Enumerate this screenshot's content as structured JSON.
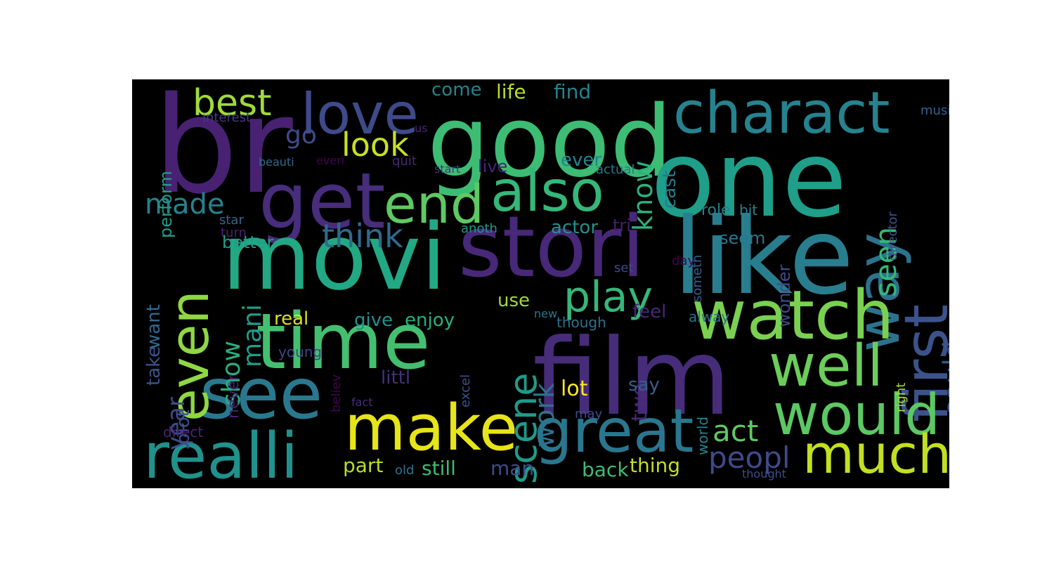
{
  "words": [
    {
      "text": "br",
      "color": "#482173"
    },
    {
      "text": "good",
      "color": "#3dbc74"
    },
    {
      "text": "one",
      "color": "#1f9e89"
    },
    {
      "text": "love",
      "color": "#3e4a89"
    },
    {
      "text": "best",
      "color": "#a0da39"
    },
    {
      "text": "charact",
      "color": "#26828e"
    },
    {
      "text": "get",
      "color": "#472d7b"
    },
    {
      "text": "end",
      "color": "#5ec962"
    },
    {
      "text": "also",
      "color": "#35b779"
    },
    {
      "text": "way",
      "color": "#2c728e"
    },
    {
      "text": "first",
      "color": "#3b528b"
    },
    {
      "text": "movi",
      "color": "#22a884"
    },
    {
      "text": "stori",
      "color": "#482878"
    },
    {
      "text": "like",
      "color": "#287d8e"
    },
    {
      "text": "watch",
      "color": "#7ad151"
    },
    {
      "text": "time",
      "color": "#44bf70"
    },
    {
      "text": "see",
      "color": "#2a788e"
    },
    {
      "text": "film",
      "color": "#472c7a"
    },
    {
      "text": "make",
      "color": "#e7e419"
    },
    {
      "text": "great",
      "color": "#2a768e"
    },
    {
      "text": "well",
      "color": "#6ccd5a"
    },
    {
      "text": "would",
      "color": "#5cc863"
    },
    {
      "text": "realli",
      "color": "#21918c"
    },
    {
      "text": "much",
      "color": "#c2df23"
    },
    {
      "text": "even",
      "color": "#8fd744"
    },
    {
      "text": "made",
      "color": "#26828e"
    },
    {
      "text": "go",
      "color": "#3e4c8a"
    },
    {
      "text": "look",
      "color": "#c8e020"
    },
    {
      "text": "think",
      "color": "#31688e"
    },
    {
      "text": "play",
      "color": "#35b779"
    },
    {
      "text": "scene",
      "color": "#1f9a8a"
    },
    {
      "text": "work",
      "color": "#2c728e"
    },
    {
      "text": "mani",
      "color": "#1f9e89"
    },
    {
      "text": "show",
      "color": "#29af7f"
    },
    {
      "text": "year",
      "color": "#3e4a89"
    },
    {
      "text": "know",
      "color": "#2db27d"
    },
    {
      "text": "seen",
      "color": "#35b779"
    },
    {
      "text": "could",
      "color": "#3b528b"
    },
    {
      "text": "act",
      "color": "#5ec962"
    },
    {
      "text": "peopl",
      "color": "#3e4a89"
    },
    {
      "text": "come",
      "color": "#26828e"
    },
    {
      "text": "life",
      "color": "#b5de2b"
    },
    {
      "text": "find",
      "color": "#26828e"
    },
    {
      "text": "cast",
      "color": "#2a788e"
    },
    {
      "text": "perform",
      "color": "#1f9e89"
    },
    {
      "text": "interest",
      "color": "#443a83"
    },
    {
      "text": "music",
      "color": "#355f8d"
    },
    {
      "text": "us",
      "color": "#482475"
    },
    {
      "text": "ever",
      "color": "#25848e"
    },
    {
      "text": "everi",
      "color": "#440154"
    },
    {
      "text": "beauti",
      "color": "#31688e"
    },
    {
      "text": "quit",
      "color": "#482878"
    },
    {
      "text": "start",
      "color": "#46337e"
    },
    {
      "text": "actual",
      "color": "#2a788e"
    },
    {
      "text": "live",
      "color": "#482475"
    },
    {
      "text": "star",
      "color": "#31688e"
    },
    {
      "text": "turn",
      "color": "#482173"
    },
    {
      "text": "anoth",
      "color": "#1f9a8a"
    },
    {
      "text": "actor",
      "color": "#21918c"
    },
    {
      "text": "tri",
      "color": "#481f70"
    },
    {
      "text": "role",
      "color": "#26828e"
    },
    {
      "text": "bit",
      "color": "#26828e"
    },
    {
      "text": "director",
      "color": "#3b528b"
    },
    {
      "text": "someth",
      "color": "#355f8d"
    },
    {
      "text": "better",
      "color": "#1f9e89"
    },
    {
      "text": "wonder",
      "color": "#3e4a89"
    },
    {
      "text": "seem",
      "color": "#2a788e"
    },
    {
      "text": "take",
      "color": "#3b528b"
    },
    {
      "text": "want",
      "color": "#31688e"
    },
    {
      "text": "set",
      "color": "#3e4a89"
    },
    {
      "text": "day",
      "color": "#440154"
    },
    {
      "text": "feel",
      "color": "#482878"
    },
    {
      "text": "use",
      "color": "#a0da39"
    },
    {
      "text": "new",
      "color": "#2a788e"
    },
    {
      "text": "though",
      "color": "#2c728e"
    },
    {
      "text": "alway",
      "color": "#2c728e"
    },
    {
      "text": "real",
      "color": "#d8e219"
    },
    {
      "text": "give",
      "color": "#21918c"
    },
    {
      "text": "enjoy",
      "color": "#29af7f"
    },
    {
      "text": "two",
      "color": "#482878"
    },
    {
      "text": "plot",
      "color": "#3b528b"
    },
    {
      "text": "never",
      "color": "#482173"
    },
    {
      "text": "young",
      "color": "#414487"
    },
    {
      "text": "believ",
      "color": "#440154"
    },
    {
      "text": "excel",
      "color": "#3b528b"
    },
    {
      "text": "littl",
      "color": "#46307e"
    },
    {
      "text": "say",
      "color": "#355f8d"
    },
    {
      "text": "world",
      "color": "#25848e"
    },
    {
      "text": "right",
      "color": "#a8db34"
    },
    {
      "text": "fact",
      "color": "#472d7b"
    },
    {
      "text": "may",
      "color": "#3e4a89"
    },
    {
      "text": "direct",
      "color": "#482475"
    },
    {
      "text": "lot",
      "color": "#fde725"
    },
    {
      "text": "part",
      "color": "#b5de2b"
    },
    {
      "text": "still",
      "color": "#3dbc74"
    },
    {
      "text": "old",
      "color": "#2c728e"
    },
    {
      "text": "man",
      "color": "#3e4c8a"
    },
    {
      "text": "thing",
      "color": "#c2df23"
    },
    {
      "text": "back",
      "color": "#3dbc74"
    },
    {
      "text": "thought",
      "color": "#3e4c8a"
    }
  ]
}
